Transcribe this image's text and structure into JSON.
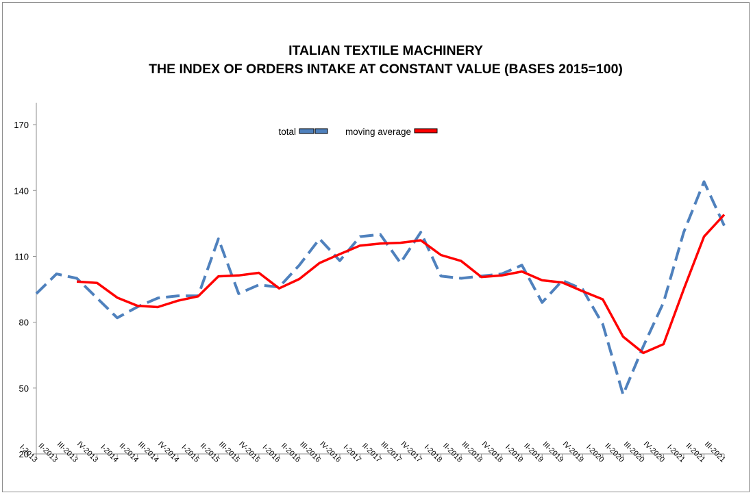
{
  "chart_data": {
    "type": "line",
    "title": [
      "ITALIAN TEXTILE MACHINERY",
      "THE INDEX OF ORDERS INTAKE AT CONSTANT VALUE (BASES 2015=100)"
    ],
    "xlabel": "",
    "ylabel": "",
    "ylim": [
      20,
      180
    ],
    "yticks": [
      20,
      50,
      80,
      110,
      140,
      170
    ],
    "grid": false,
    "legend_position": "top-center",
    "categories": [
      "I-2013",
      "II-2013",
      "III-2013",
      "IV-2013",
      "I-2014",
      "II-2014",
      "III-2014",
      "IV-2014",
      "I-2015",
      "II-2015",
      "III-2015",
      "IV-2015",
      "I-2016",
      "II-2016",
      "III-2016",
      "IV-2016",
      "I-2017",
      "II-2017",
      "III-2017",
      "IV-2017",
      "I-2018",
      "II-2018",
      "III-2018",
      "IV-2018",
      "I-2019",
      "II-2019",
      "III-2019",
      "IV-2019",
      "I-2020",
      "II-2020",
      "III-2020",
      "IV-2020",
      "I-2021",
      "II-2021",
      "III-2021"
    ],
    "series": [
      {
        "name": "total",
        "color": "#4f81bd",
        "style": "dashed",
        "values": [
          93,
          102,
          100,
          91,
          82,
          87,
          91,
          92,
          92,
          118,
          93,
          97,
          96,
          106,
          118,
          108,
          119,
          120,
          107,
          121,
          101,
          100,
          101,
          102,
          106,
          89,
          99,
          95,
          79,
          47,
          69,
          89,
          121,
          144,
          124
        ]
      },
      {
        "name": "moving average",
        "color": "#ff0000",
        "style": "solid",
        "values": [
          null,
          null,
          98.5,
          97.9,
          91.2,
          87.5,
          86.9,
          89.8,
          91.8,
          100.9,
          101.3,
          102.5,
          95.4,
          99.7,
          107,
          111,
          114.9,
          115.8,
          116.2,
          117.3,
          110.6,
          107.9,
          100.6,
          101.3,
          103.1,
          99.1,
          98.1,
          94.1,
          90.4,
          73.4,
          66,
          70,
          95,
          119,
          129
        ]
      }
    ]
  }
}
